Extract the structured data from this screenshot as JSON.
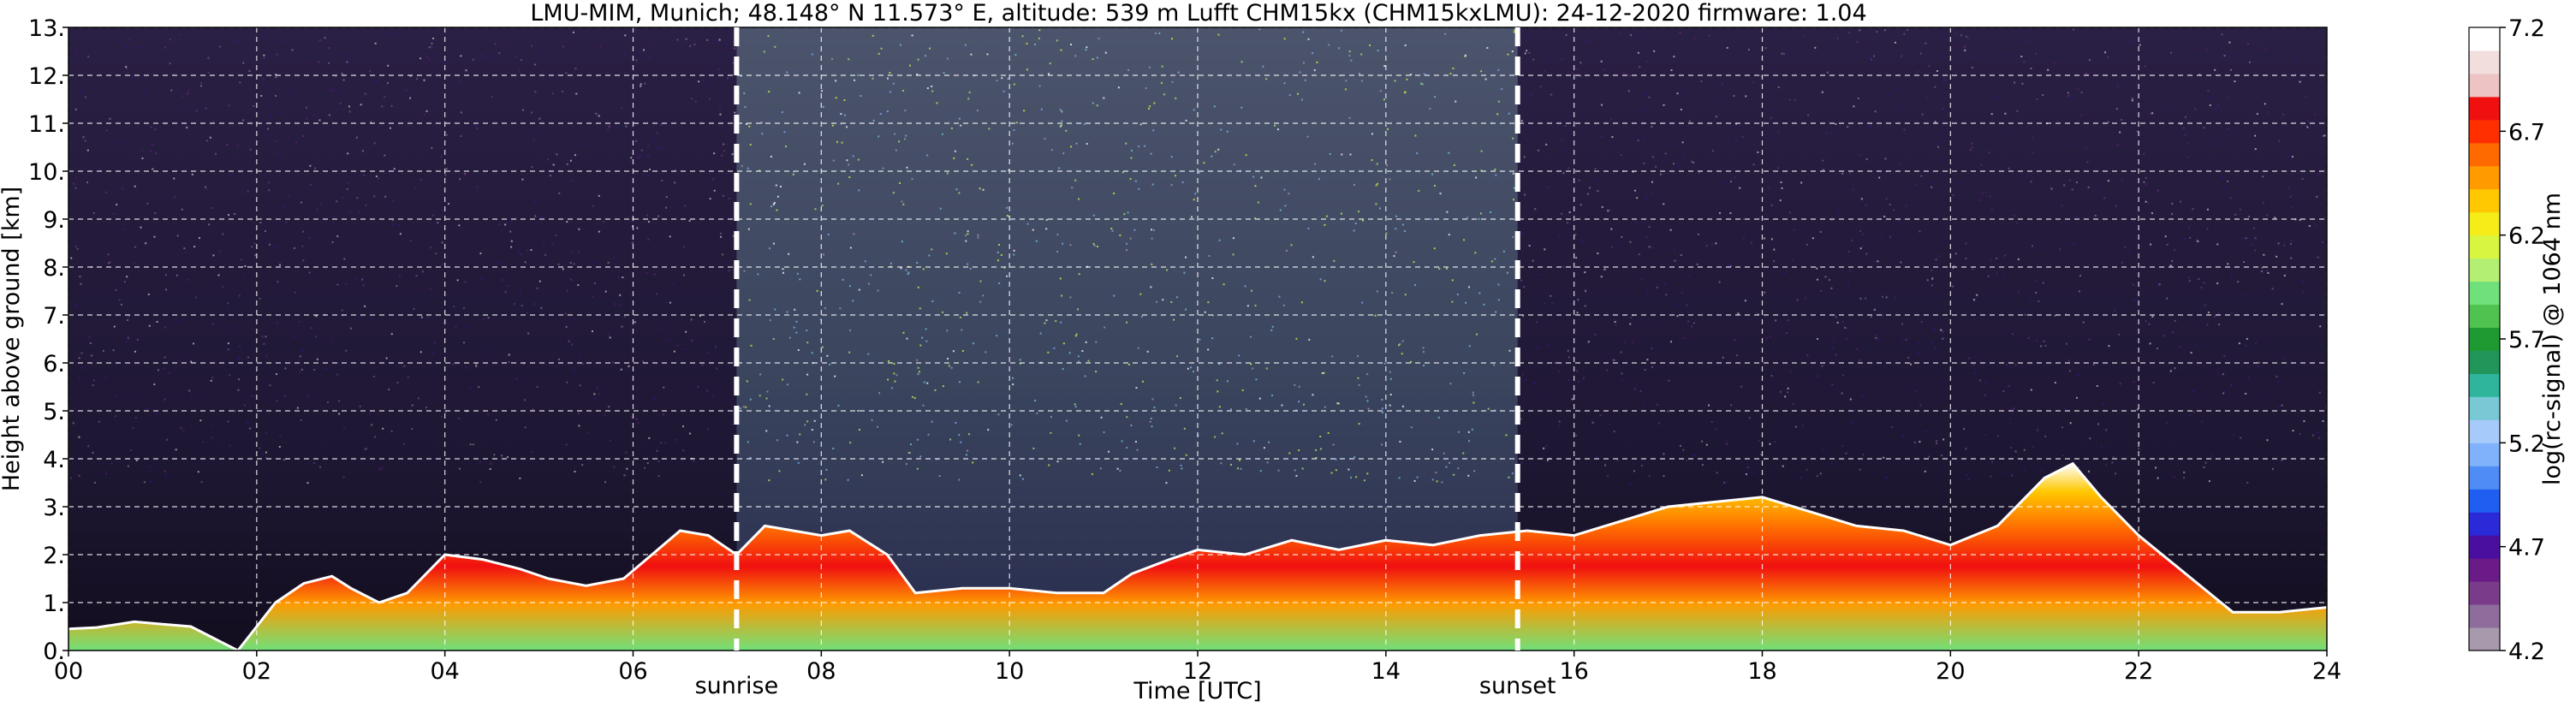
{
  "chart_data": {
    "type": "heatmap",
    "title": "LMU-MIM, Munich; 48.148° N 11.573° E, altitude: 539 m    Lufft CHM15kx (CHM15kxLMU): 24-12-2020    firmware: 1.04",
    "xlabel": "Time [UTC]",
    "ylabel": "Height above ground [km]",
    "x_ticks": [
      "00",
      "02",
      "04",
      "06",
      "08",
      "10",
      "12",
      "14",
      "16",
      "18",
      "20",
      "22",
      "24"
    ],
    "x_tick_values": [
      0,
      2,
      4,
      6,
      8,
      10,
      12,
      14,
      16,
      18,
      20,
      22,
      24
    ],
    "y_ticks": [
      "0.",
      "1.",
      "2.",
      "3.",
      "4.",
      "5.",
      "6.",
      "7.",
      "8.",
      "9.",
      "10.",
      "11.",
      "12.",
      "13."
    ],
    "y_tick_values": [
      0,
      1,
      2,
      3,
      4,
      5,
      6,
      7,
      8,
      9,
      10,
      11,
      12,
      13
    ],
    "xlim": [
      0,
      24
    ],
    "ylim": [
      0,
      13
    ],
    "grid": true,
    "sunrise": 7.1,
    "sunset": 15.4,
    "sunrise_label": "sunrise",
    "sunset_label": "sunset",
    "colorbar": {
      "label": "log(rc-signal) @ 1064 nm",
      "range": [
        4.2,
        7.2
      ],
      "ticks": [
        "4.2",
        "4.7",
        "5.2",
        "5.7",
        "6.2",
        "6.7",
        "7.2"
      ],
      "tick_values": [
        4.2,
        4.7,
        5.2,
        5.7,
        6.2,
        6.7,
        7.2
      ],
      "colors": [
        "#a899ad",
        "#8e6c9b",
        "#7a3c8a",
        "#6a1b87",
        "#4b0fa0",
        "#2a2ad8",
        "#1f5ef0",
        "#4f8cf6",
        "#7fb2fa",
        "#a6cbfb",
        "#78c8d6",
        "#2fb59c",
        "#22955a",
        "#1f9a32",
        "#4fc24f",
        "#6fe07a",
        "#b3ef72",
        "#d8f53f",
        "#f5ec18",
        "#ffc800",
        "#ff9a00",
        "#ff6a00",
        "#ff2f00",
        "#f01010",
        "#eec3c3",
        "#f3dede",
        "#ffffff"
      ]
    },
    "cloud_profile": [
      [
        0.0,
        0.45
      ],
      [
        0.3,
        0.48
      ],
      [
        0.7,
        0.6
      ],
      [
        1.0,
        0.55
      ],
      [
        1.3,
        0.5
      ],
      [
        1.6,
        0.2
      ],
      [
        1.8,
        0.0
      ],
      [
        2.0,
        0.5
      ],
      [
        2.2,
        1.0
      ],
      [
        2.5,
        1.4
      ],
      [
        2.8,
        1.55
      ],
      [
        3.0,
        1.3
      ],
      [
        3.3,
        1.0
      ],
      [
        3.6,
        1.2
      ],
      [
        3.8,
        1.6
      ],
      [
        4.0,
        2.0
      ],
      [
        4.4,
        1.9
      ],
      [
        4.8,
        1.7
      ],
      [
        5.1,
        1.5
      ],
      [
        5.5,
        1.35
      ],
      [
        5.9,
        1.5
      ],
      [
        6.2,
        2.0
      ],
      [
        6.5,
        2.5
      ],
      [
        6.8,
        2.4
      ],
      [
        7.1,
        2.0
      ],
      [
        7.4,
        2.6
      ],
      [
        7.7,
        2.5
      ],
      [
        8.0,
        2.4
      ],
      [
        8.3,
        2.5
      ],
      [
        8.7,
        2.0
      ],
      [
        9.0,
        1.2
      ],
      [
        9.5,
        1.3
      ],
      [
        10.0,
        1.3
      ],
      [
        10.5,
        1.2
      ],
      [
        11.0,
        1.2
      ],
      [
        11.3,
        1.6
      ],
      [
        11.7,
        1.9
      ],
      [
        12.0,
        2.1
      ],
      [
        12.5,
        2.0
      ],
      [
        13.0,
        2.3
      ],
      [
        13.5,
        2.1
      ],
      [
        14.0,
        2.3
      ],
      [
        14.5,
        2.2
      ],
      [
        15.0,
        2.4
      ],
      [
        15.5,
        2.5
      ],
      [
        16.0,
        2.4
      ],
      [
        16.5,
        2.7
      ],
      [
        17.0,
        3.0
      ],
      [
        17.5,
        3.1
      ],
      [
        18.0,
        3.2
      ],
      [
        18.5,
        2.9
      ],
      [
        19.0,
        2.6
      ],
      [
        19.5,
        2.5
      ],
      [
        20.0,
        2.2
      ],
      [
        20.5,
        2.6
      ],
      [
        21.0,
        3.6
      ],
      [
        21.3,
        3.9
      ],
      [
        21.6,
        3.2
      ],
      [
        22.0,
        2.4
      ],
      [
        22.5,
        1.6
      ],
      [
        23.0,
        0.8
      ],
      [
        23.5,
        0.8
      ],
      [
        24.0,
        0.9
      ]
    ]
  }
}
